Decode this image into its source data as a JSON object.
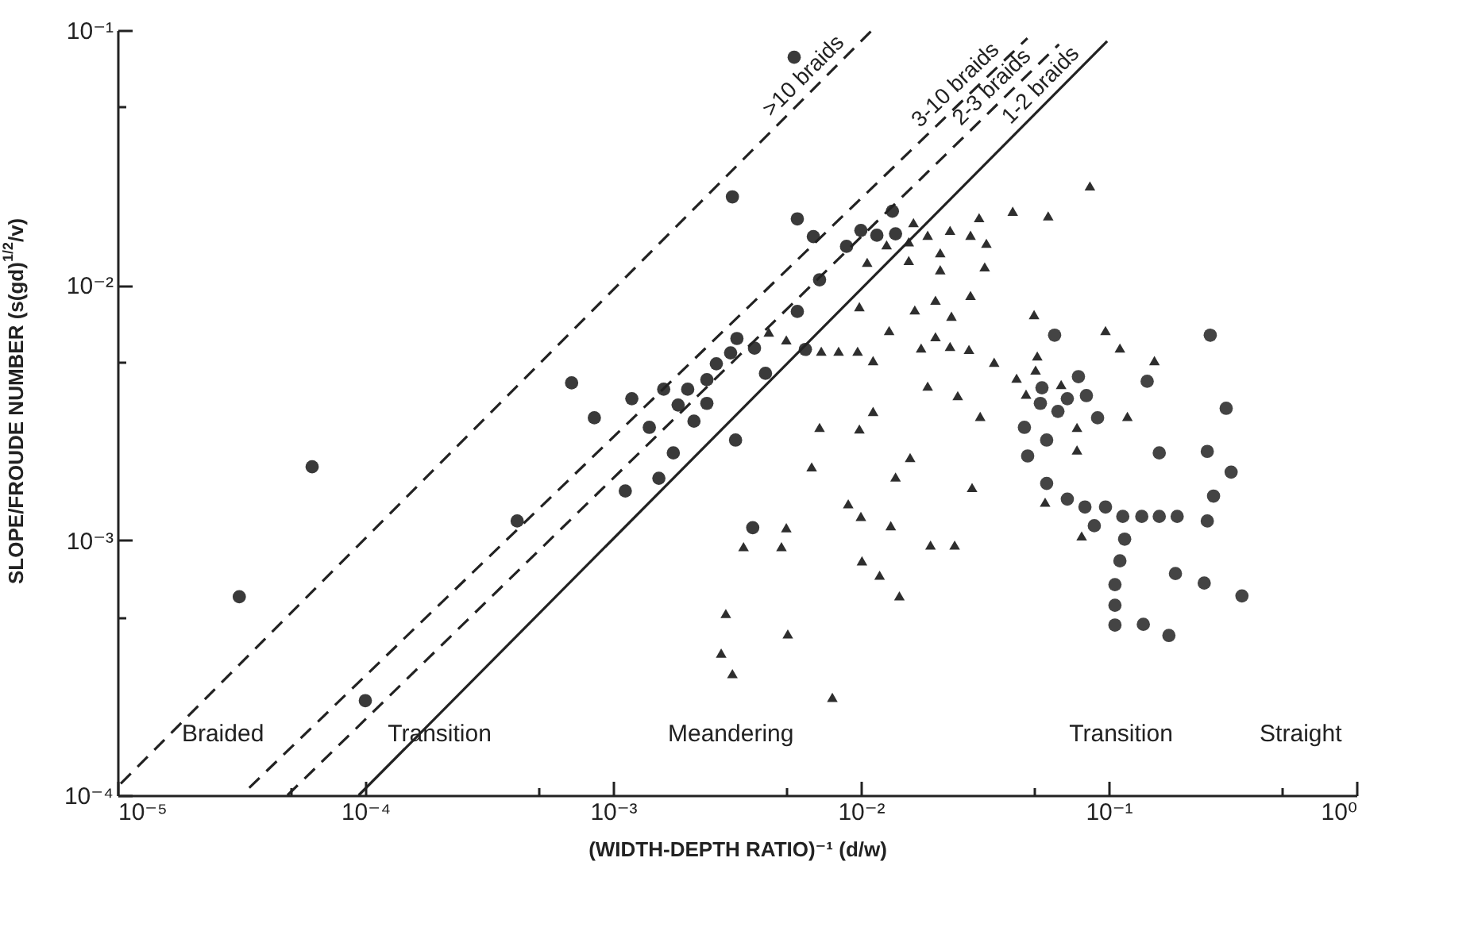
{
  "chart_data": {
    "type": "scatter",
    "xlabel": "(WIDTH-DEPTH RATIO)⁻¹ (d/w)",
    "ylabel": "SLOPE/FROUDE NUMBER (s(gd)$^{1/2}$/v)",
    "log": "xy",
    "xlim": [
      1e-05,
      1
    ],
    "ylim": [
      0.0001,
      0.1
    ],
    "xticks": [
      {
        "value": 1e-05,
        "label": "10⁻⁵"
      },
      {
        "value": 5e-05,
        "label": null
      },
      {
        "value": 0.0001,
        "label": "10⁻⁴"
      },
      {
        "value": 0.0005,
        "label": null
      },
      {
        "value": 0.001,
        "label": "10⁻³"
      },
      {
        "value": 0.005,
        "label": null
      },
      {
        "value": 0.01,
        "label": "10⁻²"
      },
      {
        "value": 0.05,
        "label": null
      },
      {
        "value": 0.1,
        "label": "10⁻¹"
      },
      {
        "value": 0.5,
        "label": null
      },
      {
        "value": 1,
        "label": "10⁰"
      }
    ],
    "yticks": [
      {
        "value": 0.0001,
        "label": "10⁻⁴"
      },
      {
        "value": 0.0005,
        "label": null
      },
      {
        "value": 0.001,
        "label": "10⁻³"
      },
      {
        "value": 0.005,
        "label": null
      },
      {
        "value": 0.01,
        "label": "10⁻²"
      },
      {
        "value": 0.05,
        "label": null
      },
      {
        "value": 0.1,
        "label": "10⁻¹"
      }
    ],
    "series": [
      {
        "marker": "circle",
        "color": "#3a3a3a",
        "x": [
          3.1e-05,
          6.1e-05,
          0.0001,
          0.00041,
          0.00068,
          0.00084,
          0.00112,
          0.00119,
          0.0014,
          0.00153,
          0.0016,
          0.00175,
          0.00183,
          0.002,
          0.00212,
          0.00239,
          0.00239,
          0.00261,
          0.00298,
          0.00312,
          0.00316,
          0.00303,
          0.00372,
          0.00412,
          0.00554,
          0.00554,
          0.00597,
          0.00643,
          0.00681,
          0.00875,
          0.01,
          0.0116,
          0.0134,
          0.0138,
          0.00366,
          0.00538
        ],
        "values": [
          0.0006,
          0.00194,
          0.000235,
          0.00119,
          0.00414,
          0.00302,
          0.00156,
          0.00359,
          0.00277,
          0.00175,
          0.00391,
          0.0022,
          0.00339,
          0.00391,
          0.00293,
          0.00426,
          0.00344,
          0.00492,
          0.00543,
          0.00247,
          0.00618,
          0.0222,
          0.00567,
          0.00451,
          0.0182,
          0.00789,
          0.0056,
          0.0155,
          0.0105,
          0.0142,
          0.0164,
          0.0157,
          0.0195,
          0.0159,
          0.00112,
          0.0783
        ]
      },
      {
        "marker": "triangle",
        "color": "#2e2e2e",
        "x": [
          0.084,
          0.041,
          0.057,
          0.03,
          0.0163,
          0.0229,
          0.0186,
          0.0277,
          0.0127,
          0.0156,
          0.0321,
          0.0209,
          0.0106,
          0.0156,
          0.0209,
          0.0316,
          0.0277,
          0.02,
          0.00986,
          0.0165,
          0.0232,
          0.05,
          0.013,
          0.00425,
          0.005,
          0.02,
          0.0971,
          0.0175,
          0.0229,
          0.0273,
          0.00692,
          0.00813,
          0.0097,
          0.0112,
          0.111,
          0.0345,
          0.0515,
          0.153,
          0.0507,
          0.0425,
          0.0643,
          0.0464,
          0.0186,
          0.0246,
          0.119,
          0.0112,
          0.0303,
          0.0745,
          0.00681,
          0.00986,
          0.0745,
          0.0158,
          0.00633,
          0.0138,
          0.0281,
          0.00889,
          0.0554,
          0.01,
          0.005,
          0.0132,
          0.0778,
          0.00336,
          0.00478,
          0.0191,
          0.0239,
          0.0101,
          0.0119,
          0.0143,
          0.00285,
          0.00507,
          0.00273,
          0.00303,
          0.00767
        ],
        "values": [
          0.0245,
          0.0195,
          0.0187,
          0.0184,
          0.0176,
          0.0164,
          0.0157,
          0.0157,
          0.0144,
          0.0148,
          0.0146,
          0.0134,
          0.0123,
          0.0125,
          0.0115,
          0.0118,
          0.00912,
          0.00873,
          0.00824,
          0.008,
          0.00756,
          0.00767,
          0.00664,
          0.00655,
          0.0061,
          0.00628,
          0.00664,
          0.00567,
          0.00575,
          0.0056,
          0.00551,
          0.00551,
          0.00551,
          0.00506,
          0.00567,
          0.00499,
          0.00528,
          0.00506,
          0.00465,
          0.00432,
          0.00408,
          0.00374,
          0.00402,
          0.00369,
          0.00306,
          0.0032,
          0.00306,
          0.00277,
          0.00277,
          0.00273,
          0.00226,
          0.00211,
          0.00194,
          0.00177,
          0.00161,
          0.00139,
          0.00141,
          0.00124,
          0.00112,
          0.00114,
          0.00104,
          0.000944,
          0.000944,
          0.000957,
          0.000957,
          0.00083,
          0.000729,
          0.000605,
          0.000516,
          0.000429,
          0.000361,
          0.0003,
          0.000242
        ]
      },
      {
        "marker": "circle",
        "color": "#444444",
        "x": [
          0.0605,
          0.257,
          0.0755,
          0.0538,
          0.0813,
          0.143,
          0.0681,
          0.053,
          0.0624,
          0.0902,
          0.298,
          0.0457,
          0.0562,
          0.0471,
          0.16,
          0.25,
          0.312,
          0.0562,
          0.265,
          0.0681,
          0.0802,
          0.0971,
          0.114,
          0.136,
          0.16,
          0.189,
          0.25,
          0.0875,
          0.116,
          0.111,
          0.106,
          0.106,
          0.106,
          0.138,
          0.175,
          0.186,
          0.243,
          0.345
        ],
        "values": [
          0.00637,
          0.00637,
          0.00438,
          0.00396,
          0.00369,
          0.0042,
          0.00359,
          0.00344,
          0.0032,
          0.00302,
          0.00329,
          0.00277,
          0.00247,
          0.00214,
          0.0022,
          0.00223,
          0.00185,
          0.00167,
          0.00149,
          0.00145,
          0.00135,
          0.00135,
          0.00124,
          0.00124,
          0.00124,
          0.00124,
          0.00119,
          0.00114,
          0.00101,
          0.00083,
          0.00067,
          0.000556,
          0.000465,
          0.000468,
          0.000423,
          0.00074,
          0.000679,
          0.000605
        ]
      },
      {
        "type": "line",
        "name": ">10 braids",
        "line_style": "dashed",
        "color": "#222222",
        "x": [
          1.03e-05,
          0.0111
        ],
        "values": [
          0.000111,
          0.1
        ]
      },
      {
        "type": "line",
        "name": "3-10 braids",
        "line_style": "dashed",
        "color": "#222222",
        "x": [
          3.4e-05,
          0.047
        ],
        "values": [
          0.000107,
          0.093
        ]
      },
      {
        "type": "line",
        "name": "2-3 braids",
        "line_style": "dashed",
        "color": "#222222",
        "x": [
          4.85e-05,
          0.063
        ],
        "values": [
          0.0001,
          0.088
        ]
      },
      {
        "type": "line",
        "name": "1-2 braids",
        "line_style": "solid",
        "color": "#222222",
        "x": [
          9.4e-05,
          0.0986
        ],
        "values": [
          0.0001,
          0.0905
        ]
      }
    ],
    "annotations": [
      "Braided",
      "Transition",
      "Meandering",
      "Transition",
      "Straight"
    ]
  }
}
